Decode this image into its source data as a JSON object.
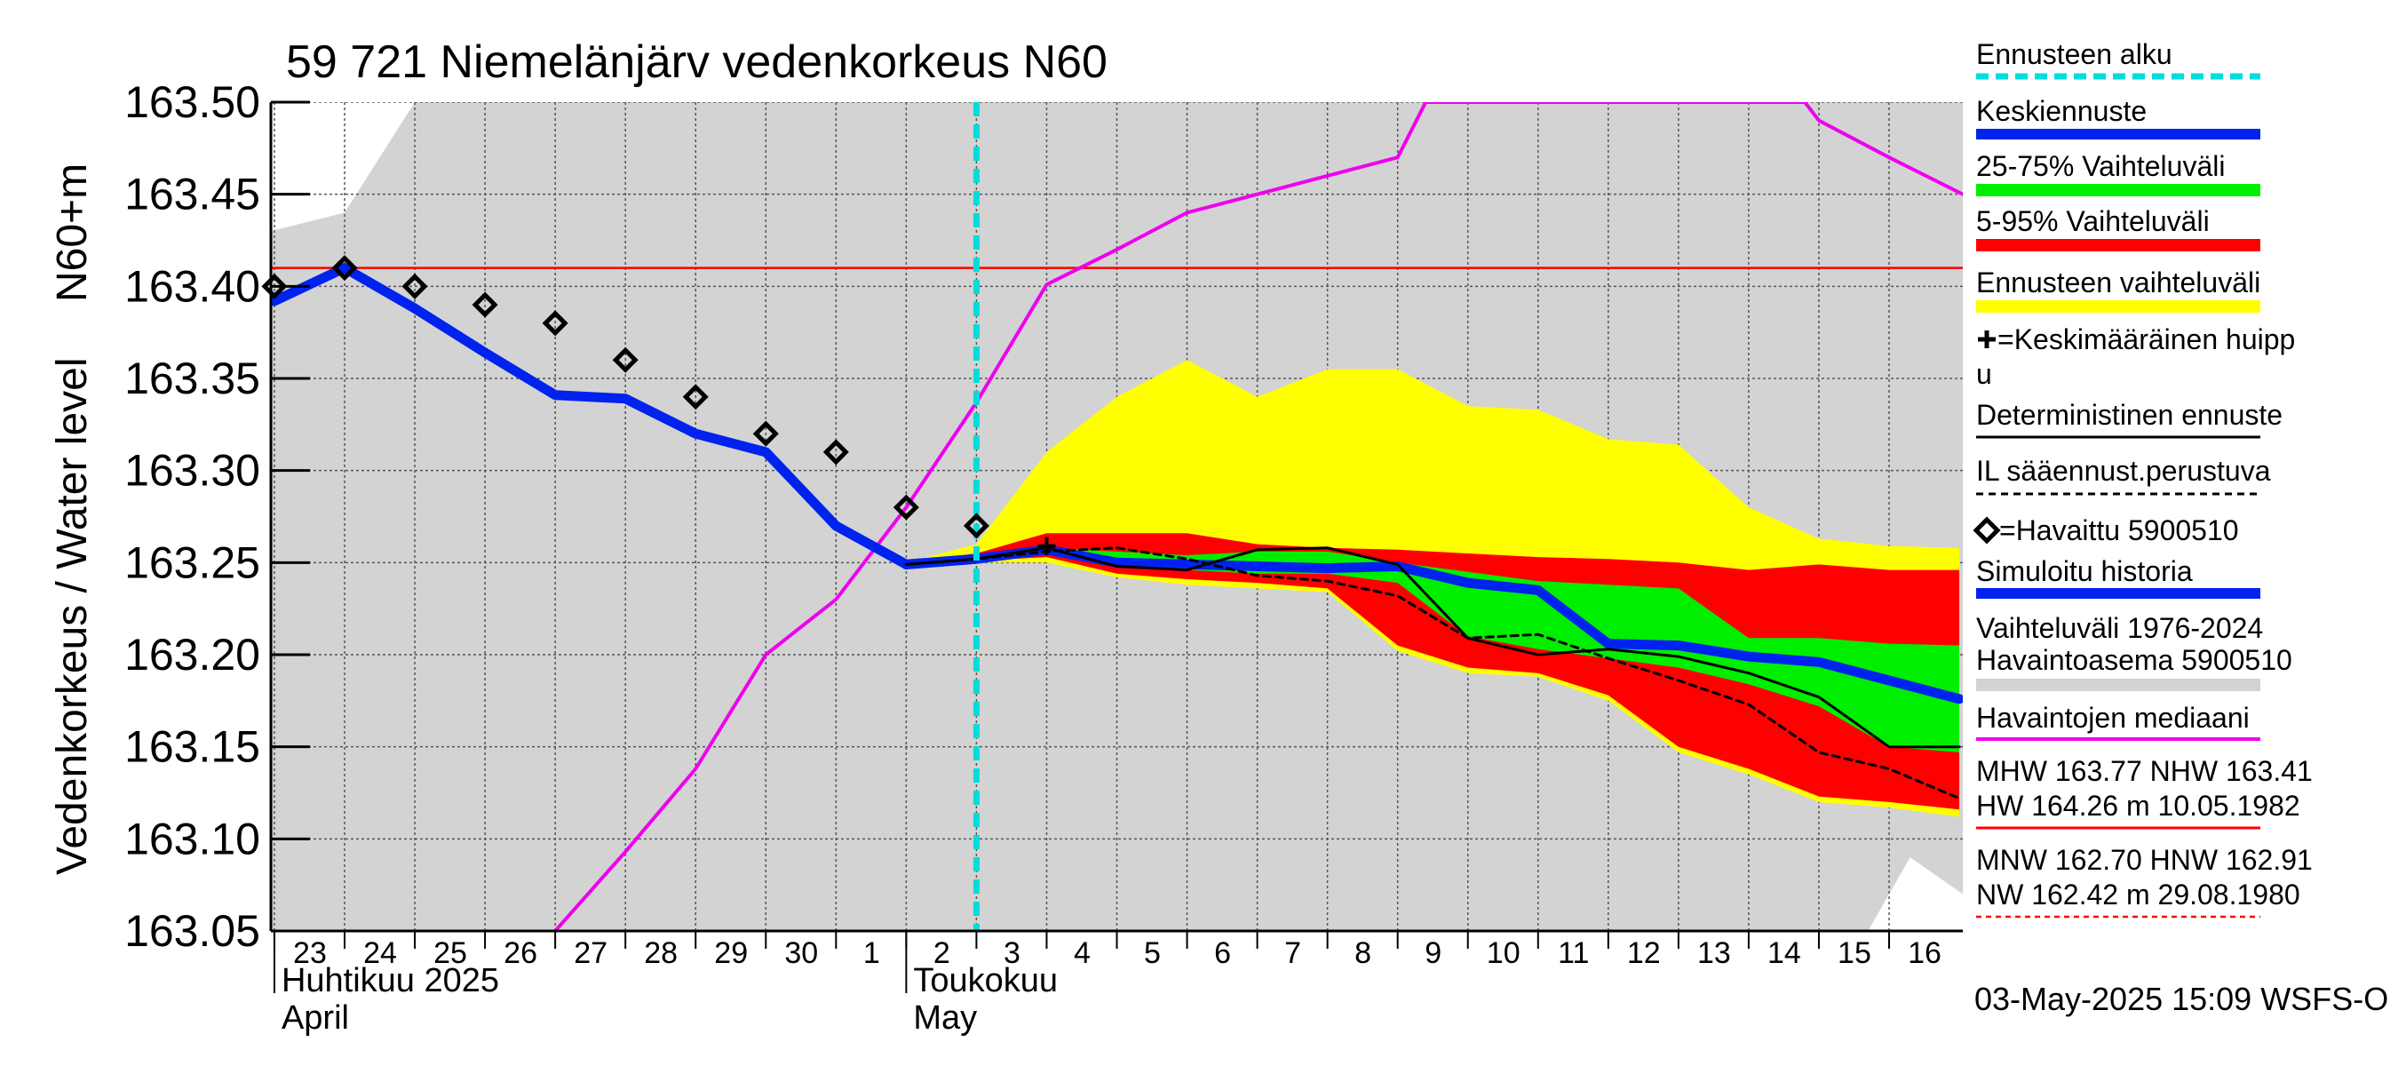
{
  "chart_data": {
    "type": "line",
    "title": "59 721 Niemelänjärv vedenkorkeus N60",
    "ylabel_top": "N60+m",
    "ylabel": "Vedenkorkeus / Water level",
    "ylim": [
      163.05,
      163.5
    ],
    "y_ticks": [
      "163.50",
      "163.45",
      "163.40",
      "163.35",
      "163.30",
      "163.25",
      "163.20",
      "163.15",
      "163.10",
      "163.05"
    ],
    "x_range": [
      -0.05,
      24.05
    ],
    "x_day_labels": [
      "23",
      "24",
      "25",
      "26",
      "27",
      "28",
      "29",
      "30",
      "1",
      "2",
      "3",
      "4",
      "5",
      "6",
      "7",
      "8",
      "9",
      "10",
      "11",
      "12",
      "13",
      "14",
      "15",
      "16"
    ],
    "month_labels": [
      {
        "fi": "Huhtikuu  2025",
        "en": "April",
        "x": 0
      },
      {
        "fi": "Toukokuu",
        "en": "May",
        "x": 9
      }
    ],
    "forecast_start_x": 10.0,
    "nhw_level": 163.41,
    "history_range": {
      "upper": [
        [
          -0.05,
          163.43
        ],
        [
          1,
          163.44
        ],
        [
          2,
          163.5
        ],
        [
          24.05,
          163.5
        ]
      ],
      "lower": [
        [
          -0.05,
          163.05
        ],
        [
          22.7,
          163.05
        ],
        [
          23.3,
          163.09
        ],
        [
          24.05,
          163.07
        ]
      ]
    },
    "band_5_95_outer": {
      "upper": [
        [
          9,
          163.25
        ],
        [
          10,
          163.26
        ],
        [
          11,
          163.31
        ],
        [
          12,
          163.34
        ],
        [
          13,
          163.36
        ],
        [
          14,
          163.34
        ],
        [
          15,
          163.355
        ],
        [
          16,
          163.355
        ],
        [
          17,
          163.335
        ],
        [
          18,
          163.333
        ],
        [
          19,
          163.317
        ],
        [
          20,
          163.314
        ],
        [
          21,
          163.28
        ],
        [
          22,
          163.263
        ],
        [
          23,
          163.259
        ],
        [
          24,
          163.258
        ]
      ],
      "lower": [
        [
          9,
          163.25
        ],
        [
          10,
          163.25
        ],
        [
          11,
          163.25
        ],
        [
          12,
          163.242
        ],
        [
          13,
          163.238
        ],
        [
          14,
          163.236
        ],
        [
          15,
          163.234
        ],
        [
          16,
          163.202
        ],
        [
          17,
          163.19
        ],
        [
          18,
          163.188
        ],
        [
          19,
          163.175
        ],
        [
          20,
          163.147
        ],
        [
          21,
          163.135
        ],
        [
          22,
          163.12
        ],
        [
          23,
          163.117
        ],
        [
          24,
          163.112
        ]
      ]
    },
    "band_5_95": {
      "upper": [
        [
          9,
          163.25
        ],
        [
          10,
          163.255
        ],
        [
          11,
          163.266
        ],
        [
          12,
          163.266
        ],
        [
          13,
          163.266
        ],
        [
          14,
          163.26
        ],
        [
          15,
          163.258
        ],
        [
          16,
          163.257
        ],
        [
          17,
          163.255
        ],
        [
          18,
          163.253
        ],
        [
          19,
          163.252
        ],
        [
          20,
          163.25
        ],
        [
          21,
          163.246
        ],
        [
          22,
          163.249
        ],
        [
          23,
          163.246
        ],
        [
          24,
          163.246
        ]
      ],
      "lower": [
        [
          9,
          163.25
        ],
        [
          10,
          163.251
        ],
        [
          11,
          163.253
        ],
        [
          12,
          163.244
        ],
        [
          13,
          163.241
        ],
        [
          14,
          163.239
        ],
        [
          15,
          163.236
        ],
        [
          16,
          163.205
        ],
        [
          17,
          163.193
        ],
        [
          18,
          163.19
        ],
        [
          19,
          163.178
        ],
        [
          20,
          163.15
        ],
        [
          21,
          163.138
        ],
        [
          22,
          163.123
        ],
        [
          23,
          163.12
        ],
        [
          24,
          163.116
        ]
      ]
    },
    "band_25_75": {
      "upper": [
        [
          9,
          163.25
        ],
        [
          10,
          163.254
        ],
        [
          11,
          163.258
        ],
        [
          12,
          163.256
        ],
        [
          13,
          163.254
        ],
        [
          14,
          163.256
        ],
        [
          15,
          163.256
        ],
        [
          16,
          163.25
        ],
        [
          17,
          163.245
        ],
        [
          18,
          163.24
        ],
        [
          19,
          163.238
        ],
        [
          20,
          163.236
        ],
        [
          21,
          163.209
        ],
        [
          22,
          163.209
        ],
        [
          23,
          163.206
        ],
        [
          24,
          163.205
        ]
      ],
      "lower": [
        [
          9,
          163.25
        ],
        [
          10,
          163.252
        ],
        [
          11,
          163.255
        ],
        [
          12,
          163.249
        ],
        [
          13,
          163.246
        ],
        [
          14,
          163.244
        ],
        [
          15,
          163.244
        ],
        [
          16,
          163.239
        ],
        [
          17,
          163.21
        ],
        [
          18,
          163.203
        ],
        [
          19,
          163.198
        ],
        [
          20,
          163.193
        ],
        [
          21,
          163.184
        ],
        [
          22,
          163.172
        ],
        [
          23,
          163.15
        ],
        [
          24,
          163.147
        ]
      ]
    },
    "series": [
      {
        "name": "Keskiennuste",
        "color": "#0022ee",
        "values": [
          [
            9,
            163.249
          ],
          [
            10,
            163.252
          ],
          [
            11,
            163.257
          ],
          [
            12,
            163.25
          ],
          [
            13,
            163.249
          ],
          [
            14,
            163.248
          ],
          [
            15,
            163.247
          ],
          [
            16,
            163.248
          ],
          [
            17,
            163.239
          ],
          [
            18,
            163.235
          ],
          [
            19,
            163.206
          ],
          [
            20,
            163.205
          ],
          [
            21,
            163.199
          ],
          [
            22,
            163.196
          ],
          [
            23,
            163.186
          ],
          [
            24,
            163.176
          ]
        ]
      },
      {
        "name": "Simuloitu historia",
        "color": "#0022ee",
        "values": [
          [
            0,
            163.392
          ],
          [
            1,
            163.41
          ],
          [
            2,
            163.388
          ],
          [
            3,
            163.364
          ],
          [
            4,
            163.341
          ],
          [
            5,
            163.339
          ],
          [
            6,
            163.32
          ],
          [
            7,
            163.31
          ],
          [
            8,
            163.27
          ],
          [
            9,
            163.249
          ],
          [
            10,
            163.252
          ]
        ]
      },
      {
        "name": "Deterministinen ennuste",
        "color": "#000000",
        "values": [
          [
            9,
            163.249
          ],
          [
            10,
            163.252
          ],
          [
            11,
            163.258
          ],
          [
            12,
            163.248
          ],
          [
            13,
            163.246
          ],
          [
            14,
            163.257
          ],
          [
            15,
            163.258
          ],
          [
            16,
            163.249
          ],
          [
            17,
            163.209
          ],
          [
            18,
            163.2
          ],
          [
            19,
            163.203
          ],
          [
            20,
            163.199
          ],
          [
            21,
            163.19
          ],
          [
            22,
            163.177
          ],
          [
            23,
            163.15
          ],
          [
            24,
            163.15
          ]
        ]
      },
      {
        "name": "IL sääennust.perustuva",
        "color": "#000000",
        "values": [
          [
            9,
            163.249
          ],
          [
            10,
            163.252
          ],
          [
            11,
            163.256
          ],
          [
            12,
            163.258
          ],
          [
            13,
            163.252
          ],
          [
            14,
            163.243
          ],
          [
            15,
            163.24
          ],
          [
            16,
            163.232
          ],
          [
            17,
            163.209
          ],
          [
            18,
            163.211
          ],
          [
            19,
            163.198
          ],
          [
            20,
            163.186
          ],
          [
            21,
            163.173
          ],
          [
            22,
            163.147
          ],
          [
            23,
            163.138
          ],
          [
            24,
            163.122
          ]
        ]
      },
      {
        "name": "Havaintojen mediaani",
        "color": "#ee00ee",
        "values": [
          [
            4,
            163.05
          ],
          [
            5,
            163.093
          ],
          [
            6,
            163.138
          ],
          [
            7,
            163.2
          ],
          [
            8,
            163.23
          ],
          [
            9,
            163.28
          ],
          [
            10,
            163.337
          ],
          [
            11,
            163.401
          ],
          [
            12,
            163.42
          ],
          [
            13,
            163.44
          ],
          [
            14,
            163.45
          ],
          [
            15,
            163.46
          ],
          [
            16,
            163.47
          ],
          [
            16.4,
            163.5
          ],
          [
            21.8,
            163.5
          ],
          [
            22,
            163.49
          ],
          [
            23,
            163.47
          ],
          [
            24.05,
            163.45
          ]
        ]
      }
    ],
    "observed": [
      [
        0,
        163.4
      ],
      [
        1,
        163.41
      ],
      [
        2,
        163.4
      ],
      [
        3,
        163.39
      ],
      [
        4,
        163.38
      ],
      [
        5,
        163.36
      ],
      [
        6,
        163.34
      ],
      [
        7,
        163.32
      ],
      [
        8,
        163.31
      ],
      [
        9,
        163.28
      ],
      [
        10,
        163.27
      ]
    ],
    "mean_peak": [
      11,
      163.259
    ],
    "legend": {
      "forecast_start": "Ennusteen alku",
      "mean_forecast": "Keskiennuste",
      "range_25_75": "25-75% Vaihteluväli",
      "range_5_95": "5-95% Vaihteluväli",
      "forecast_range": "Ennusteen vaihteluväli",
      "mean_peak_l1": "=Keskimääräinen huipp",
      "mean_peak_l2": "u",
      "deterministic": "Deterministinen ennuste",
      "il_weather": "IL sääennust.perustuva",
      "observed": "=Havaittu 5900510",
      "simulated": "Simuloitu historia",
      "hist_range_l1": "Vaihteluväli 1976-2024",
      "hist_range_l2": " Havaintoasema 5900510",
      "median": "Havaintojen mediaani",
      "mhw_l1": "MHW 163.77 NHW 163.41",
      "mhw_l2": "HW 164.26 m 10.05.1982",
      "mnw_l1": "MNW 162.70 HNW 162.91",
      "mnw_l2": "NW 162.42 m 29.08.1980"
    },
    "footer": "03-May-2025 15:09 WSFS-O",
    "colors": {
      "history": "#d3d3d3",
      "forecast_range": "#ffff00",
      "range_5_95": "#ff0000",
      "range_25_75": "#00ee00",
      "mean": "#0022ee",
      "forecast_start": "#00dddd",
      "median": "#ee00ee",
      "nhw": "#ff0000"
    }
  }
}
